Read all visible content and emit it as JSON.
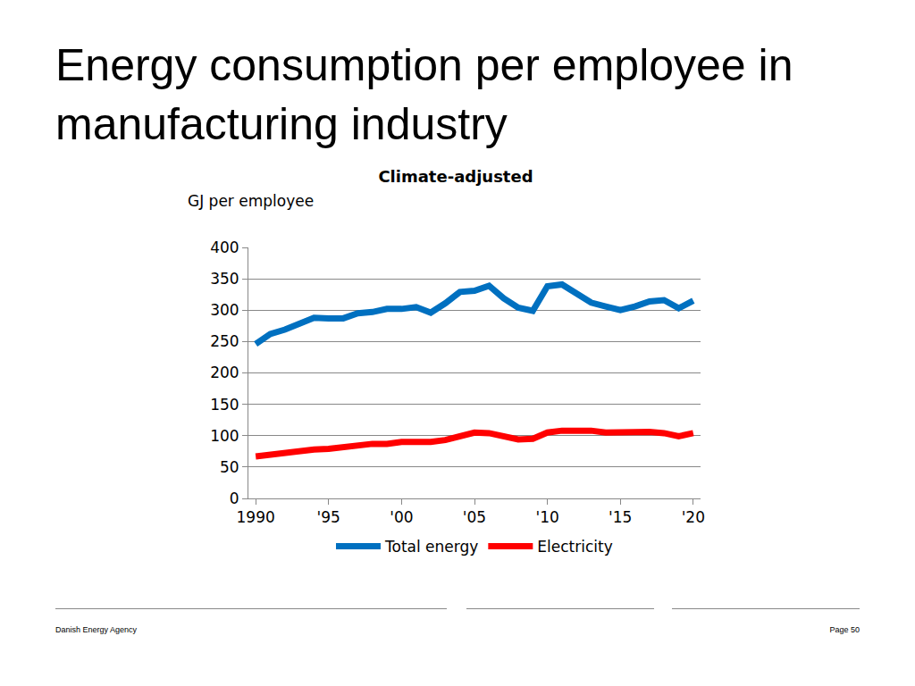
{
  "slide": {
    "title": "Energy consumption per employee in manufacturing industry",
    "source": "Danish Energy Agency",
    "page": "Page 50"
  },
  "chart_data": {
    "type": "line",
    "title": "Climate-adjusted",
    "y_label": "GJ per employee",
    "x": [
      1990,
      1991,
      1992,
      1993,
      1994,
      1995,
      1996,
      1997,
      1998,
      1999,
      2000,
      2001,
      2002,
      2003,
      2004,
      2005,
      2006,
      2007,
      2008,
      2009,
      2010,
      2011,
      2012,
      2013,
      2014,
      2015,
      2016,
      2017,
      2018,
      2019,
      2020
    ],
    "series": [
      {
        "name": "Total energy",
        "color": "#0070c0",
        "values": [
          246,
          262,
          269,
          278,
          288,
          287,
          287,
          295,
          297,
          302,
          302,
          305,
          296,
          311,
          329,
          331,
          339,
          319,
          304,
          299,
          338,
          341,
          326,
          312,
          306,
          300,
          306,
          314,
          316,
          303,
          315
        ]
      },
      {
        "name": "Electricity",
        "color": "#ff0000",
        "values": [
          67,
          70,
          73,
          75,
          78,
          79,
          82,
          85,
          87,
          87,
          90,
          90,
          90,
          93,
          100,
          105,
          104,
          99,
          94,
          95,
          105,
          108,
          108,
          108,
          105,
          106,
          106,
          106,
          104,
          99,
          104
        ]
      }
    ],
    "xlim": [
      1989.5,
      2020.5
    ],
    "xticks": [
      1990,
      {
        "value": 1995,
        "label": "'95"
      },
      {
        "value": 2000,
        "label": "'00"
      },
      {
        "value": 2005,
        "label": "'05"
      },
      {
        "value": 2010,
        "label": "'10"
      },
      {
        "value": 2015,
        "label": "'15"
      },
      {
        "value": 2020,
        "label": "'20"
      }
    ],
    "ylim": [
      0,
      400
    ],
    "yticks": [
      0,
      50,
      100,
      150,
      200,
      250,
      300,
      350,
      400
    ],
    "grid": true,
    "legend": "bottom"
  }
}
